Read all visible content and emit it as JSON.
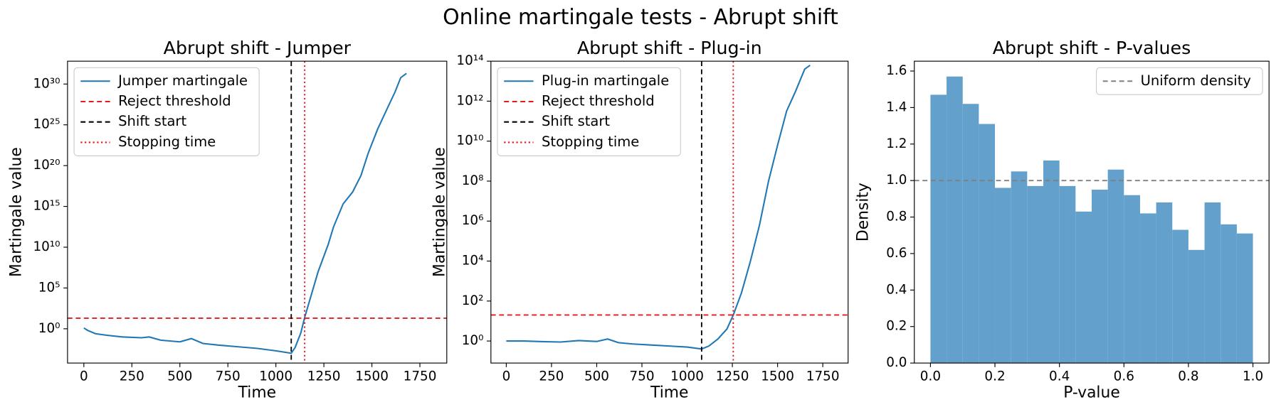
{
  "title": "Online martingale tests - Abrupt shift",
  "chart_data": [
    {
      "type": "line",
      "title": "Abrupt shift - Jumper",
      "xlabel": "Time",
      "ylabel": "Martingale value",
      "log_y": true,
      "legend": "upper left",
      "grid": false,
      "xlim": [
        -85,
        1890
      ],
      "ylim": [
        6.3e-05,
        6.3e+32
      ],
      "xticks": [
        0,
        250,
        500,
        750,
        1000,
        1250,
        1500,
        1750
      ],
      "yticks": [
        {
          "value": 1,
          "label": "10⁰"
        },
        {
          "value": 100000.0,
          "label": "10⁵"
        },
        {
          "value": 10000000000.0,
          "label": "10¹⁰"
        },
        {
          "value": 1000000000000000.0,
          "label": "10¹⁵"
        },
        {
          "value": 1e+20,
          "label": "10²⁰"
        },
        {
          "value": 1e+25,
          "label": "10²⁵"
        },
        {
          "value": 1e+30,
          "label": "10³⁰"
        }
      ],
      "series": [
        {
          "name": "Jumper martingale",
          "color": "#1f77b4",
          "x": [
            0,
            20,
            60,
            120,
            200,
            300,
            340,
            400,
            500,
            560,
            620,
            700,
            800,
            900,
            1000,
            1080,
            1100,
            1130,
            1150,
            1180,
            1220,
            1272,
            1300,
            1350,
            1400,
            1443,
            1480,
            1530,
            1580,
            1620,
            1650,
            1680
          ],
          "values": [
            1.26,
            0.63,
            0.25,
            0.16,
            0.1,
            0.079,
            0.1,
            0.04,
            0.025,
            0.063,
            0.016,
            0.01,
            0.0063,
            0.004,
            0.002,
            0.001,
            0.005,
            0.32,
            25,
            6300,
            10000000.0,
            20000000000.0,
            3000000000000.0,
            2000000000000000.0,
            6e+16,
            6e+18,
            3e+21,
            3e+24,
            1e+27,
            1e+29,
            6e+30,
            2e+31
          ]
        }
      ],
      "lines": [
        {
          "name": "Reject threshold",
          "orientation": "h",
          "value": 20,
          "color": "#e41a1c",
          "dash": "dashed"
        },
        {
          "name": "Shift start",
          "orientation": "v",
          "value": 1080,
          "color": "#000000",
          "dash": "dashed"
        },
        {
          "name": "Stopping time",
          "orientation": "v",
          "value": 1150,
          "color": "#e41a1c",
          "dash": "dotted"
        }
      ]
    },
    {
      "type": "line",
      "title": "Abrupt shift - Plug-in",
      "xlabel": "Time",
      "ylabel": "Martingale value",
      "log_y": true,
      "legend": "upper left",
      "grid": false,
      "xlim": [
        -85,
        1890
      ],
      "ylim": [
        0.079,
        100000000000000.0
      ],
      "xticks": [
        0,
        250,
        500,
        750,
        1000,
        1250,
        1500,
        1750
      ],
      "yticks": [
        {
          "value": 1,
          "label": "10⁰"
        },
        {
          "value": 100,
          "label": "10²"
        },
        {
          "value": 10000,
          "label": "10⁴"
        },
        {
          "value": 1000000.0,
          "label": "10⁶"
        },
        {
          "value": 100000000.0,
          "label": "10⁸"
        },
        {
          "value": 10000000000.0,
          "label": "10¹⁰"
        },
        {
          "value": 1000000000000.0,
          "label": "10¹²"
        },
        {
          "value": 100000000000000.0,
          "label": "10¹⁴"
        }
      ],
      "series": [
        {
          "name": "Plug-in martingale",
          "color": "#1f77b4",
          "x": [
            0,
            100,
            200,
            300,
            400,
            500,
            560,
            620,
            700,
            800,
            900,
            1000,
            1080,
            1120,
            1170,
            1220,
            1255,
            1300,
            1350,
            1400,
            1450,
            1500,
            1550,
            1600,
            1650,
            1680
          ],
          "values": [
            1,
            1,
            0.93,
            0.89,
            1.05,
            0.95,
            1.26,
            0.83,
            0.71,
            0.63,
            0.56,
            0.5,
            0.4,
            0.56,
            1.26,
            4,
            20,
            250,
            10000,
            630000,
            100000000.0,
            6300000000.0,
            320000000000.0,
            3200000000000.0,
            40000000000000.0,
            63000000000000.0
          ]
        }
      ],
      "lines": [
        {
          "name": "Reject threshold",
          "orientation": "h",
          "value": 20,
          "color": "#e41a1c",
          "dash": "dashed"
        },
        {
          "name": "Shift start",
          "orientation": "v",
          "value": 1080,
          "color": "#000000",
          "dash": "dashed"
        },
        {
          "name": "Stopping time",
          "orientation": "v",
          "value": 1255,
          "color": "#e41a1c",
          "dash": "dotted"
        }
      ]
    },
    {
      "type": "histogram",
      "title": "Abrupt shift - P-values",
      "xlabel": "P-value",
      "ylabel": "Density",
      "legend": "upper right",
      "grid": false,
      "color": "#63a0cb",
      "xlim": [
        -0.05,
        1.05
      ],
      "ylim": [
        0,
        1.654
      ],
      "xticks": [
        {
          "value": 0,
          "label": "0.0"
        },
        0.2,
        0.4,
        0.6,
        0.8,
        {
          "value": 1,
          "label": "1.0"
        }
      ],
      "yticks": [
        {
          "value": 0,
          "label": "0.0"
        },
        0.2,
        0.4,
        0.6,
        0.8,
        {
          "value": 1,
          "label": "1.0"
        },
        1.2,
        1.4,
        1.6
      ],
      "bins": [
        0,
        0.05,
        0.1,
        0.15,
        0.2,
        0.25,
        0.3,
        0.35,
        0.4,
        0.45,
        0.5,
        0.55,
        0.6,
        0.65,
        0.7,
        0.75,
        0.8,
        0.85,
        0.9,
        0.95,
        1
      ],
      "values": [
        1.47,
        1.57,
        1.42,
        1.31,
        0.96,
        1.05,
        0.97,
        1.11,
        0.97,
        0.83,
        0.95,
        1.06,
        0.92,
        0.82,
        0.88,
        0.73,
        0.62,
        0.88,
        0.76,
        0.71
      ],
      "lines": [
        {
          "name": "Uniform density",
          "orientation": "h",
          "value": 1,
          "color": "#808080",
          "dash": "dashed"
        }
      ]
    }
  ]
}
